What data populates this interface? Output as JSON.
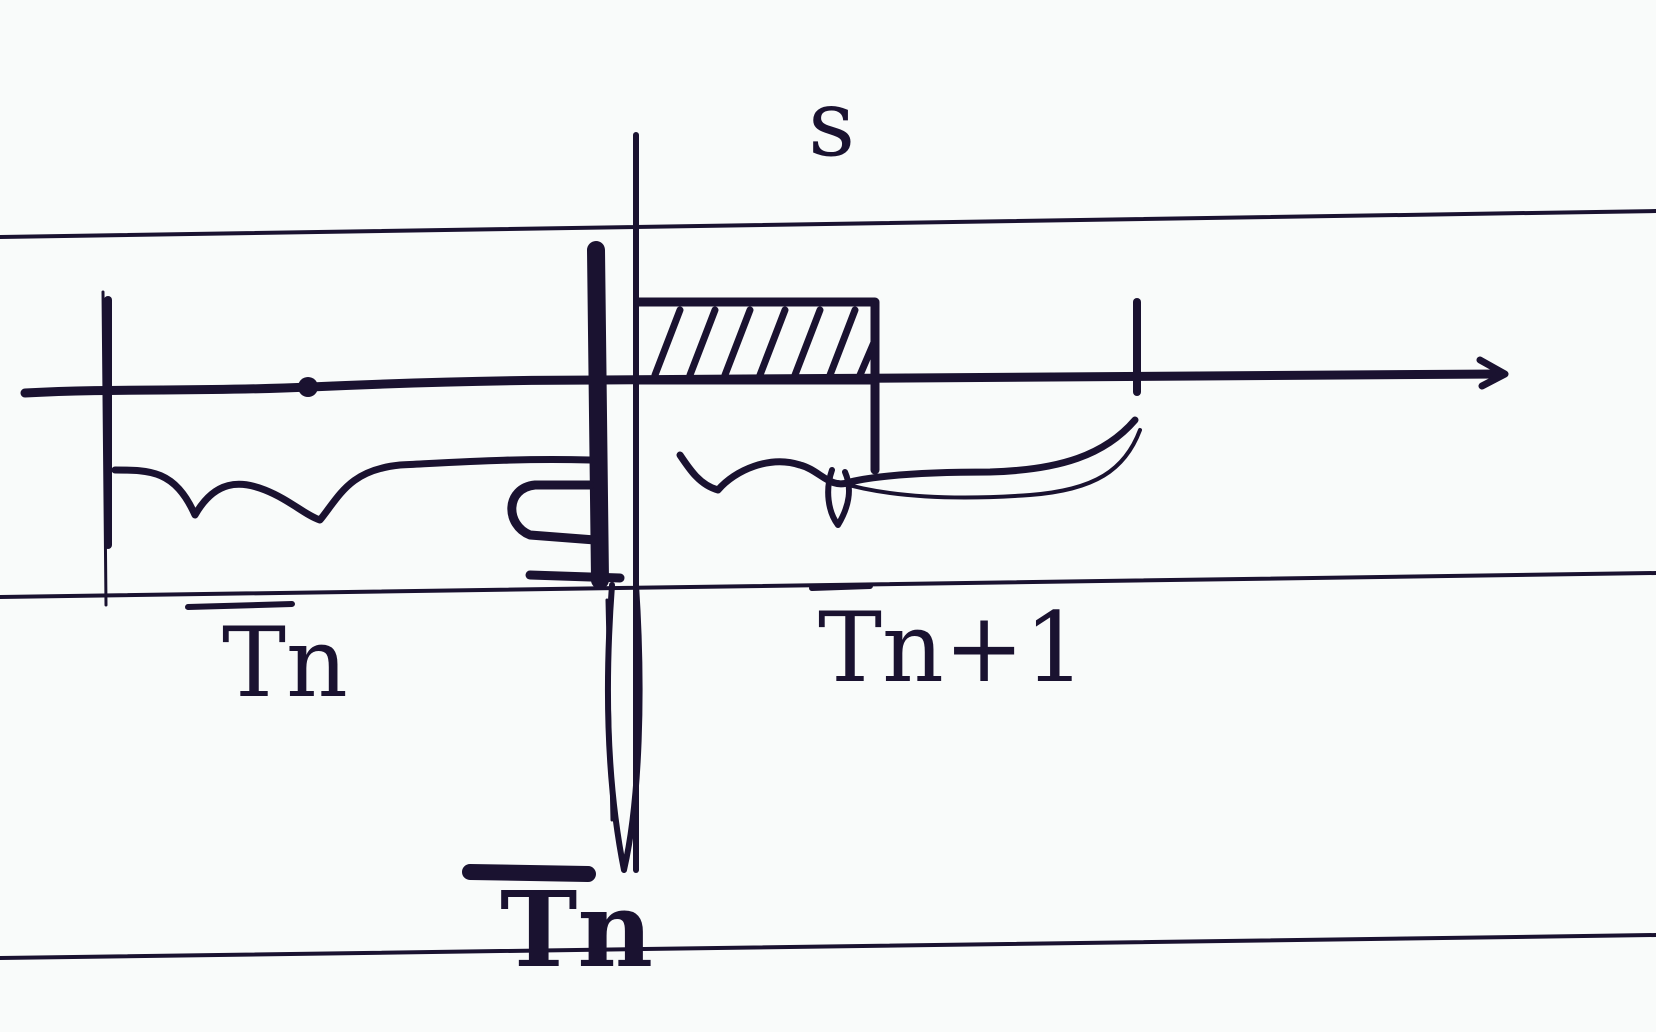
{
  "labels": {
    "s": "s",
    "tn_left": "Tn",
    "tn_next": "Tn+1",
    "tn_bottom": "Tn"
  }
}
